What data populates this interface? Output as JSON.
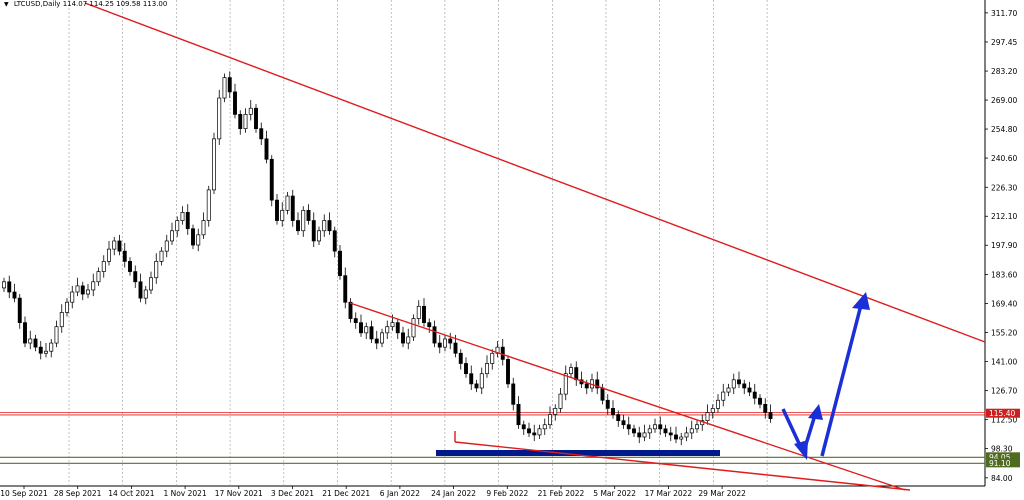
{
  "header": {
    "symbol": "LTCUSD,Daily",
    "ohlc": "114.07 114.25 109.58 113.00"
  },
  "colors": {
    "candle": "#000000",
    "trendline": "#e01b1b",
    "support": "#5a6e2d",
    "zone": "#001a8c",
    "arrow": "#1a2fd6",
    "price_badge": "#cc2020",
    "support_badge": "#4f6b22"
  },
  "chart_data": {
    "type": "candlestick",
    "title": "LTCUSD,Daily",
    "ylim": [
      80,
      318
    ],
    "yticks": [
      "311.70",
      "297.45",
      "283.20",
      "269.00",
      "254.80",
      "240.60",
      "226.30",
      "212.10",
      "197.90",
      "183.60",
      "169.40",
      "155.20",
      "141.00",
      "126.70",
      "112.50",
      "98.30",
      "84.00"
    ],
    "xticks": [
      "10 Sep 2021",
      "28 Sep 2021",
      "14 Oct 2021",
      "1 Nov 2021",
      "17 Nov 2021",
      "3 Dec 2021",
      "21 Dec 2021",
      "6 Jan 2022",
      "24 Jan 2022",
      "9 Feb 2022",
      "21 Feb 2022",
      "5 Mar 2022",
      "17 Mar 2022",
      "29 Mar 2022"
    ],
    "price_labels": {
      "current": "115.40",
      "support_upper": "94.05",
      "support_lower": "91.10"
    },
    "support_levels": [
      94.05,
      91.1
    ],
    "resistance_level": 115.4,
    "close_series": [
      180,
      175,
      172,
      160,
      150,
      152,
      148,
      145,
      146,
      150,
      158,
      165,
      170,
      175,
      178,
      174,
      176,
      180,
      185,
      190,
      196,
      200,
      195,
      190,
      185,
      180,
      172,
      176,
      182,
      190,
      195,
      200,
      205,
      210,
      214,
      206,
      198,
      203,
      210,
      225,
      250,
      270,
      280,
      273,
      262,
      255,
      262,
      265,
      255,
      250,
      240,
      220,
      210,
      215,
      222,
      210,
      205,
      215,
      210,
      200,
      205,
      210,
      205,
      195,
      183,
      170,
      162,
      160,
      155,
      158,
      152,
      150,
      155,
      158,
      160,
      155,
      150,
      153,
      162,
      168,
      160,
      158,
      150,
      148,
      152,
      150,
      145,
      140,
      135,
      130,
      128,
      135,
      140,
      145,
      148,
      142,
      130,
      120,
      110,
      108,
      106,
      105,
      108,
      110,
      115,
      118,
      125,
      135,
      138,
      132,
      130,
      128,
      132,
      128,
      122,
      118,
      115,
      112,
      110,
      108,
      106,
      104,
      106,
      108,
      110,
      108,
      106,
      105,
      103,
      104,
      106,
      108,
      110,
      112,
      116,
      118,
      122,
      126,
      128,
      132,
      130,
      128,
      126,
      123,
      120,
      116,
      113
    ]
  }
}
